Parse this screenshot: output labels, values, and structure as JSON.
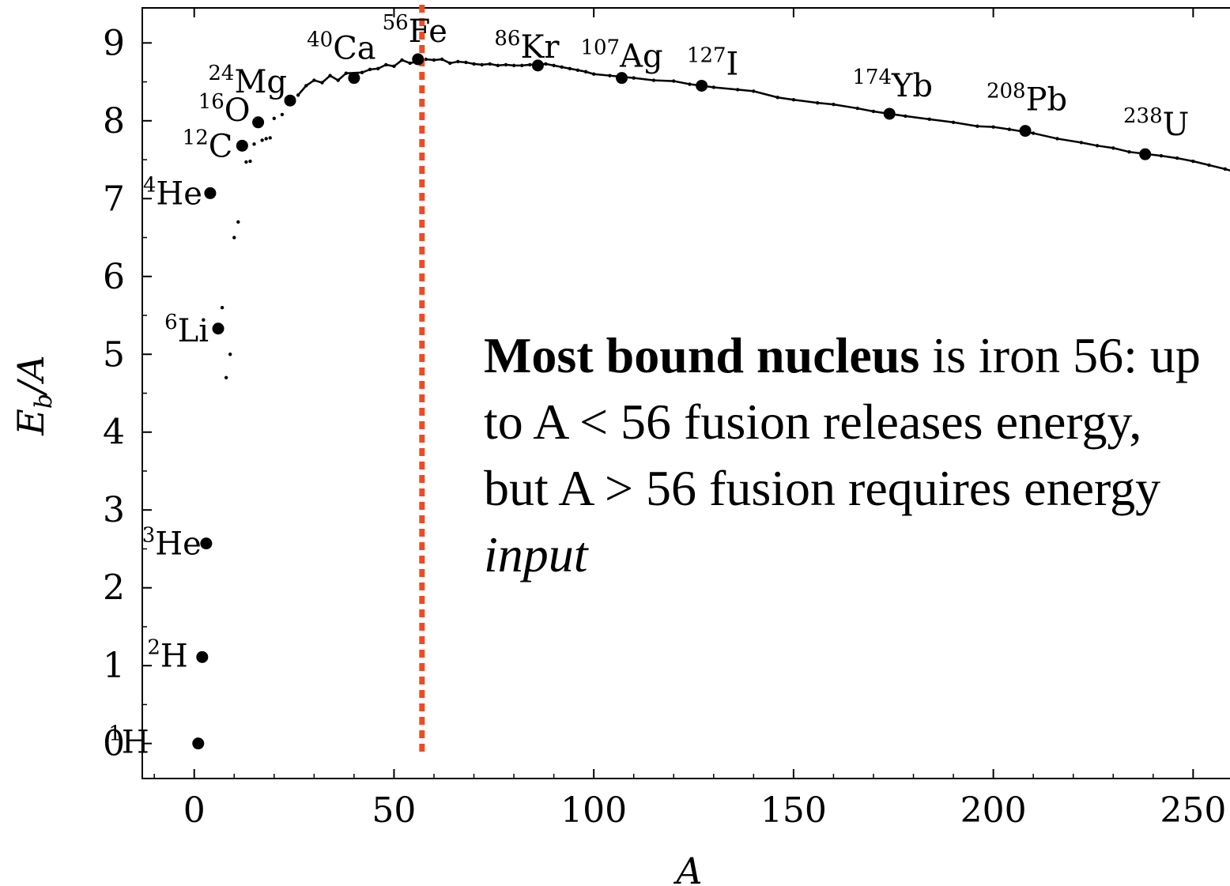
{
  "chart_data": {
    "type": "scatter",
    "xlabel": "A",
    "ylabel_main": "E",
    "ylabel_sub": "b",
    "ylabel_rest": "/A",
    "xlim": [
      -13,
      262
    ],
    "ylim": [
      -0.45,
      9.45
    ],
    "x_ticks": [
      0,
      50,
      100,
      150,
      200,
      250
    ],
    "y_ticks": [
      0,
      1,
      2,
      3,
      4,
      5,
      6,
      7,
      8,
      9
    ],
    "reference_line": {
      "x": 57,
      "style": "dotted",
      "color": "#f04a23"
    },
    "labeled_nuclei": [
      {
        "mass": "1",
        "element": "H",
        "A": 1,
        "value": 0.0
      },
      {
        "mass": "2",
        "element": "H",
        "A": 2,
        "value": 1.11
      },
      {
        "mass": "3",
        "element": "He",
        "A": 3,
        "value": 2.57
      },
      {
        "mass": "4",
        "element": "He",
        "A": 4,
        "value": 7.07
      },
      {
        "mass": "6",
        "element": "Li",
        "A": 6,
        "value": 5.33
      },
      {
        "mass": "12",
        "element": "C",
        "A": 12,
        "value": 7.68
      },
      {
        "mass": "16",
        "element": "O",
        "A": 16,
        "value": 7.98
      },
      {
        "mass": "24",
        "element": "Mg",
        "A": 24,
        "value": 8.26
      },
      {
        "mass": "40",
        "element": "Ca",
        "A": 40,
        "value": 8.55
      },
      {
        "mass": "56",
        "element": "Fe",
        "A": 56,
        "value": 8.79
      },
      {
        "mass": "86",
        "element": "Kr",
        "A": 86,
        "value": 8.71
      },
      {
        "mass": "107",
        "element": "Ag",
        "A": 107,
        "value": 8.55
      },
      {
        "mass": "127",
        "element": "I",
        "A": 127,
        "value": 8.45
      },
      {
        "mass": "174",
        "element": "Yb",
        "A": 174,
        "value": 8.09
      },
      {
        "mass": "208",
        "element": "Pb",
        "A": 208,
        "value": 7.87
      },
      {
        "mass": "238",
        "element": "U",
        "A": 238,
        "value": 7.57
      }
    ],
    "curve_points": [
      [
        7,
        5.6
      ],
      [
        8,
        4.7
      ],
      [
        9,
        5.0
      ],
      [
        10,
        6.5
      ],
      [
        11,
        6.7
      ],
      [
        12,
        7.68
      ],
      [
        13,
        7.47
      ],
      [
        14,
        7.48
      ],
      [
        15,
        7.7
      ],
      [
        17,
        7.75
      ],
      [
        18,
        7.77
      ],
      [
        19,
        7.78
      ],
      [
        20,
        8.03
      ],
      [
        22,
        8.08
      ],
      [
        26,
        8.33
      ],
      [
        28,
        8.45
      ],
      [
        30,
        8.52
      ],
      [
        32,
        8.49
      ],
      [
        34,
        8.58
      ],
      [
        36,
        8.52
      ],
      [
        38,
        8.61
      ],
      [
        42,
        8.62
      ],
      [
        44,
        8.66
      ],
      [
        46,
        8.67
      ],
      [
        48,
        8.72
      ],
      [
        50,
        8.7
      ],
      [
        52,
        8.78
      ],
      [
        54,
        8.74
      ],
      [
        58,
        8.79
      ],
      [
        60,
        8.78
      ],
      [
        62,
        8.79
      ],
      [
        64,
        8.74
      ],
      [
        66,
        8.76
      ],
      [
        68,
        8.75
      ],
      [
        70,
        8.73
      ],
      [
        72,
        8.72
      ],
      [
        74,
        8.73
      ],
      [
        76,
        8.71
      ],
      [
        78,
        8.72
      ],
      [
        80,
        8.71
      ],
      [
        82,
        8.71
      ],
      [
        84,
        8.72
      ],
      [
        88,
        8.73
      ],
      [
        90,
        8.71
      ],
      [
        92,
        8.69
      ],
      [
        94,
        8.67
      ],
      [
        96,
        8.65
      ],
      [
        98,
        8.63
      ],
      [
        100,
        8.6
      ],
      [
        104,
        8.58
      ],
      [
        110,
        8.55
      ],
      [
        115,
        8.52
      ],
      [
        120,
        8.51
      ],
      [
        124,
        8.47
      ],
      [
        130,
        8.43
      ],
      [
        136,
        8.4
      ],
      [
        140,
        8.38
      ],
      [
        146,
        8.3
      ],
      [
        150,
        8.27
      ],
      [
        156,
        8.23
      ],
      [
        160,
        8.21
      ],
      [
        166,
        8.16
      ],
      [
        170,
        8.12
      ],
      [
        178,
        8.06
      ],
      [
        184,
        8.02
      ],
      [
        190,
        7.98
      ],
      [
        196,
        7.93
      ],
      [
        200,
        7.92
      ],
      [
        204,
        7.89
      ],
      [
        210,
        7.84
      ],
      [
        216,
        7.77
      ],
      [
        222,
        7.72
      ],
      [
        226,
        7.68
      ],
      [
        230,
        7.65
      ],
      [
        234,
        7.6
      ],
      [
        242,
        7.55
      ],
      [
        246,
        7.52
      ],
      [
        250,
        7.48
      ],
      [
        254,
        7.43
      ],
      [
        258,
        7.38
      ],
      [
        262,
        7.32
      ]
    ],
    "annotation": {
      "bold": "Most bound nucleus",
      "text1": " is iron 56:  up to A < 56 fusion releases energy, but A > 56 fusion requires energy ",
      "italic": "input"
    }
  }
}
